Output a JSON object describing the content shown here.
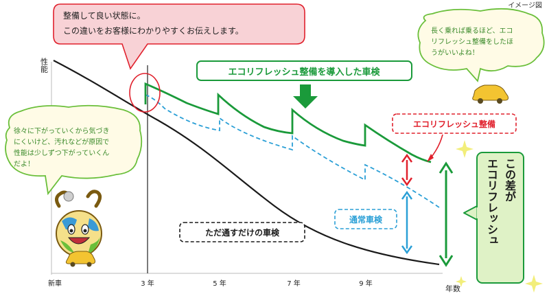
{
  "image_note": "イメージ図",
  "axes": {
    "y_label": "性能",
    "x_label": "年数",
    "x_ticks": [
      "新車",
      "3 年",
      "5 年",
      "7 年",
      "9 年"
    ]
  },
  "callouts": {
    "top_left": [
      "整備して良い状態に。",
      "この違いをお客様にわかりやすくお伝えします。"
    ],
    "top_right": [
      "長く乗れば乗るほど、エコ",
      "リフレッシュ整備をしたほ",
      "うがいいよね！"
    ],
    "left_mascot": [
      "徐々に下がっていくから気づき",
      "にくいけど、汚れなどが原因で",
      "性能は少しずつ下がっていくん",
      "だよ！"
    ],
    "right_vertical": [
      "この差が",
      "エコリフレッシュ"
    ]
  },
  "labels": {
    "eco_refresh_inspection": "エコリフレッシュ整備を導入した車検",
    "eco_refresh_service": "エコリフレッシュ整備",
    "regular_inspection": "通常車検",
    "pass_only_inspection": "ただ通すだけの車検"
  },
  "colors": {
    "green": "#1a9a3a",
    "blue": "#2a9fd6",
    "red": "#e0202c",
    "black": "#1a1a1a"
  }
}
